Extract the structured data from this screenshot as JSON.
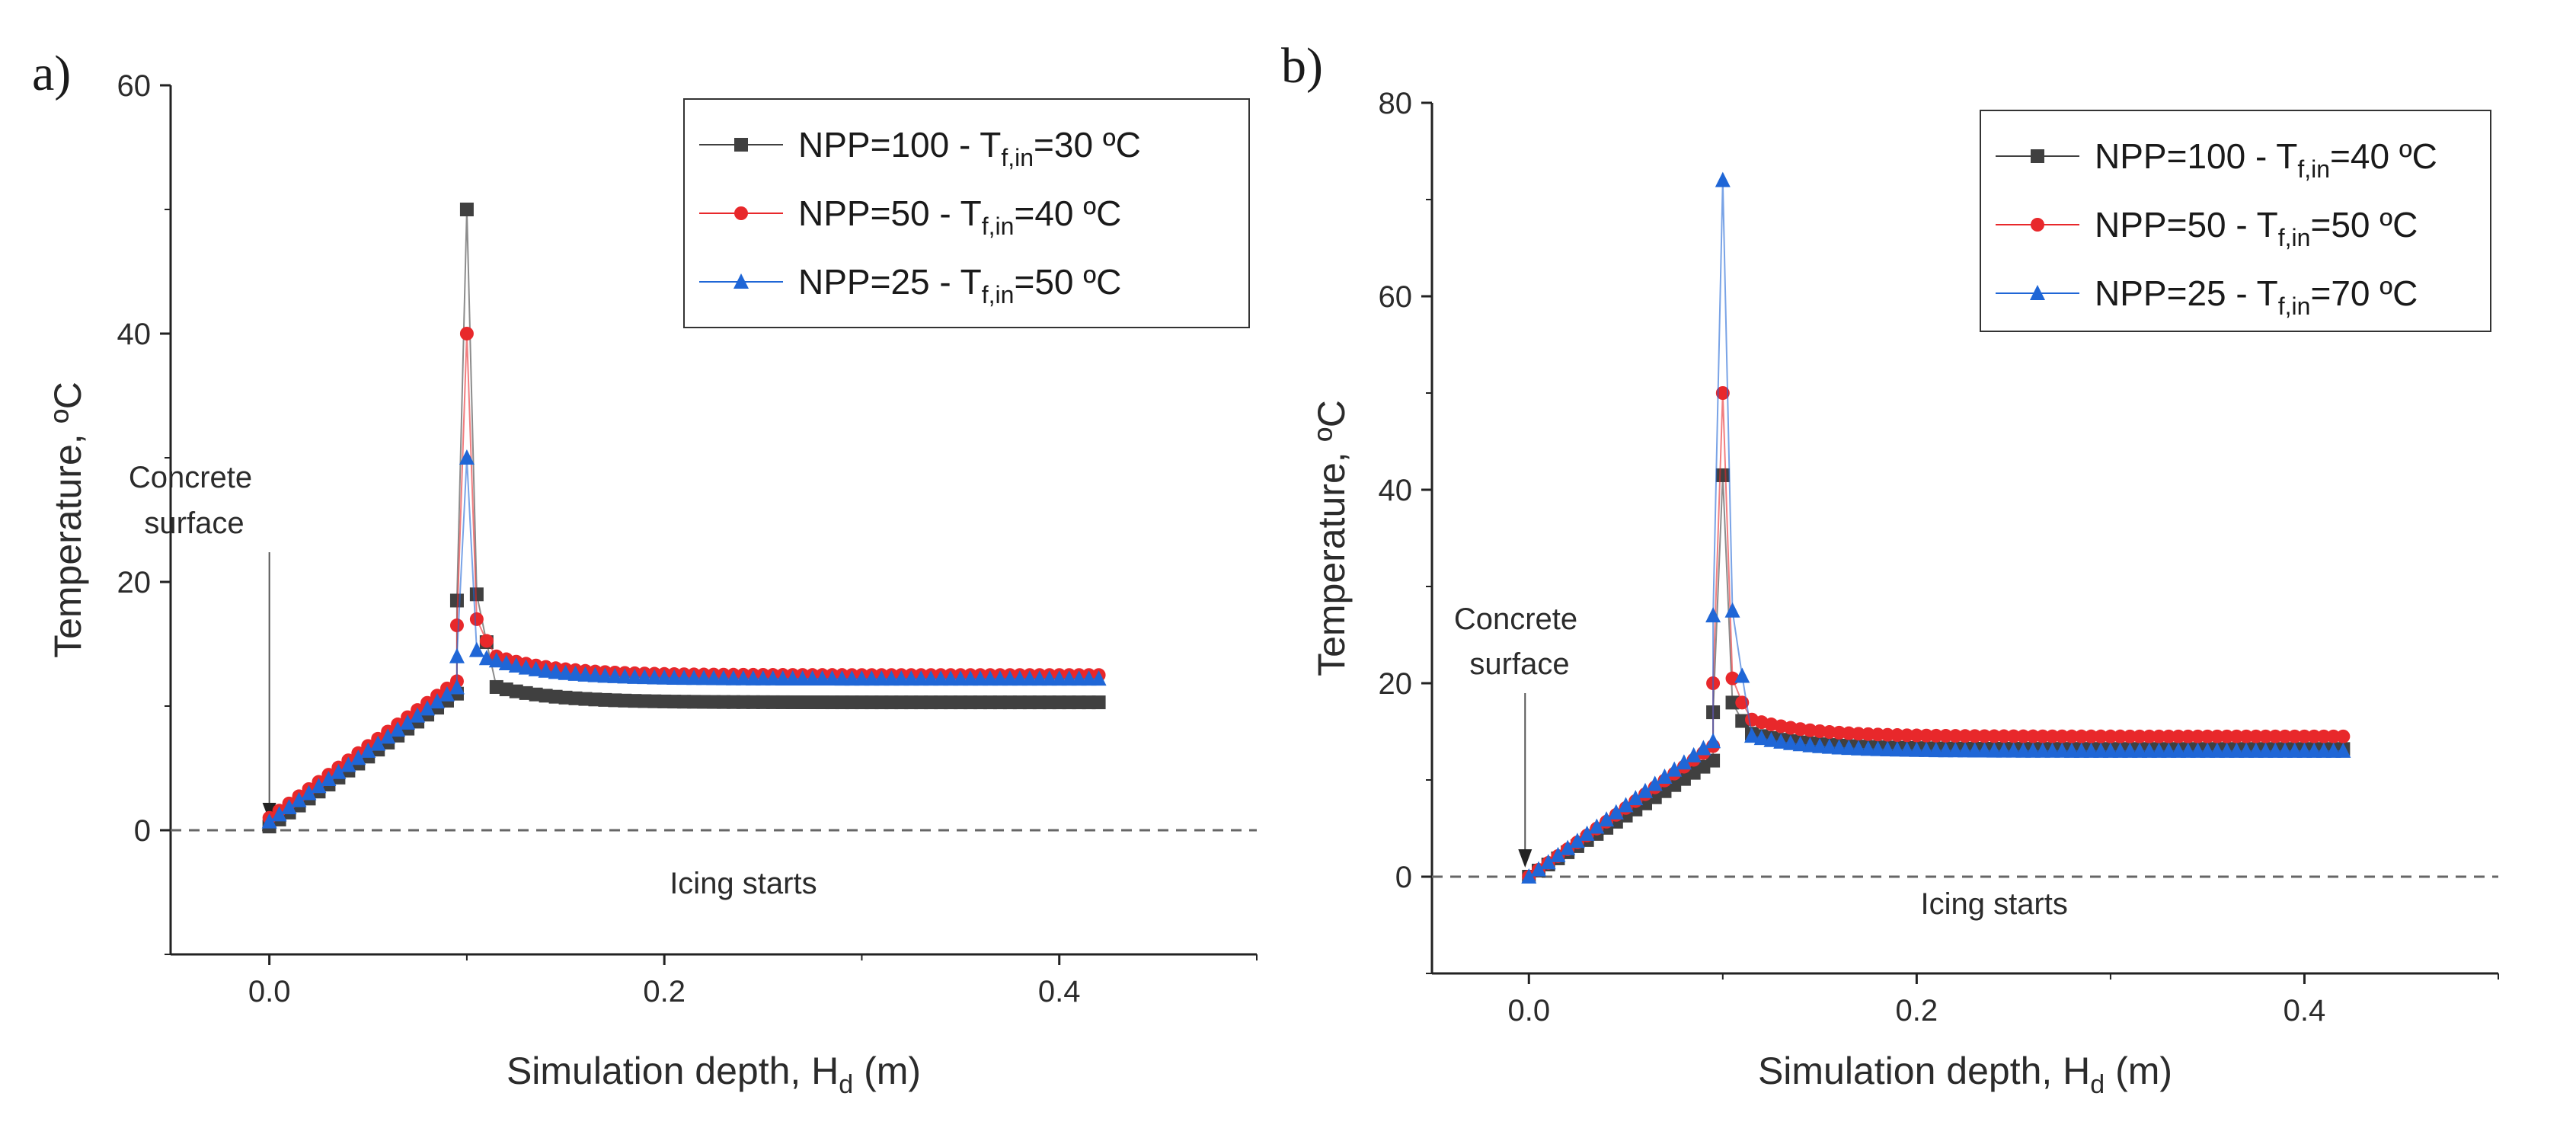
{
  "chart_data": [
    {
      "panel": "a)",
      "type": "line",
      "xlabel": "Simulation depth, H",
      "xlabel_sub": "d",
      "xlabel_unit": " (m)",
      "ylabel": "Temperature, ºC",
      "xlim": [
        -0.05,
        0.5
      ],
      "ylim": [
        -10,
        60
      ],
      "xticks": [
        "0.0",
        "0.2",
        "0.4"
      ],
      "xtick_values": [
        0.0,
        0.2,
        0.4
      ],
      "yticks": [
        "0",
        "20",
        "40",
        "60"
      ],
      "ytick_values": [
        0,
        20,
        40,
        60
      ],
      "reference_line": 0,
      "annotations": {
        "surface_line1": "Concrete",
        "surface_line2": "surface",
        "icing": "Icing starts"
      },
      "series": [
        {
          "name": "NPP=100 - T",
          "sub": "f,in",
          "suffix": "=30 ºC",
          "color": "#404040",
          "marker": "square",
          "peak": 50,
          "pre_peak": 18.5,
          "post_peak": 19,
          "plateau": 10.3,
          "start": 0.3,
          "end_ramp": 11.0
        },
        {
          "name": "NPP=50 - T",
          "sub": "f,in",
          "suffix": "=40 ºC",
          "color": "#e8282b",
          "marker": "circle",
          "peak": 40,
          "pre_peak": 16.5,
          "post_peak": 17,
          "plateau": 12.5,
          "start": 1.0,
          "end_ramp": 12.0
        },
        {
          "name": "NPP=25 - T",
          "sub": "f,in",
          "suffix": "=50 ºC",
          "color": "#1f66d6",
          "marker": "triangle",
          "peak": 30,
          "pre_peak": 14,
          "post_peak": 14.5,
          "plateau": 12.2,
          "start": 0.7,
          "end_ramp": 11.5
        }
      ]
    },
    {
      "panel": "b)",
      "type": "line",
      "xlabel": "Simulation depth, H",
      "xlabel_sub": "d",
      "xlabel_unit": " (m)",
      "ylabel": "Temperature, ºC",
      "xlim": [
        -0.05,
        0.5
      ],
      "ylim": [
        -10,
        80
      ],
      "xticks": [
        "0.0",
        "0.2",
        "0.4"
      ],
      "xtick_values": [
        0.0,
        0.2,
        0.4
      ],
      "yticks": [
        "0",
        "20",
        "40",
        "60",
        "80"
      ],
      "ytick_values": [
        0,
        20,
        40,
        60,
        80
      ],
      "reference_line": 0,
      "annotations": {
        "surface_line1": "Concrete",
        "surface_line2": "surface",
        "icing": "Icing starts"
      },
      "series": [
        {
          "name": "NPP=100 - T",
          "sub": "f,in",
          "suffix": "=40 ºC",
          "color": "#404040",
          "marker": "square",
          "peak": 41.5,
          "pre_peak": 17,
          "post_peak": 18,
          "plateau": 13.2,
          "start": 0.0,
          "end_ramp": 12.0
        },
        {
          "name": "NPP=50 - T",
          "sub": "f,in",
          "suffix": "=50 ºC",
          "color": "#e8282b",
          "marker": "circle",
          "peak": 50,
          "pre_peak": 20,
          "post_peak": 20.5,
          "plateau": 14.5,
          "start": 0.0,
          "end_ramp": 13.5
        },
        {
          "name": "NPP=25 - T",
          "sub": "f,in",
          "suffix": "=70 ºC",
          "color": "#1f66d6",
          "marker": "triangle",
          "peak": 72,
          "pre_peak": 27,
          "post_peak": 27.5,
          "plateau": 13.0,
          "start": 0.0,
          "end_ramp": 14.0
        }
      ]
    }
  ]
}
